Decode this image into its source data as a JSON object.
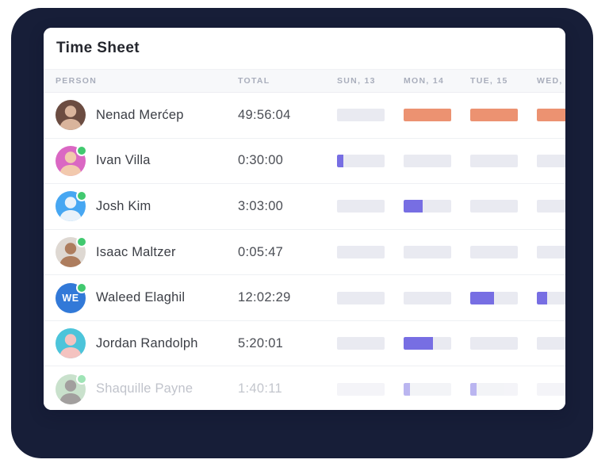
{
  "title": "Time Sheet",
  "header": {
    "person": "PERSON",
    "total": "TOTAL",
    "days": [
      "SUN, 13",
      "MON, 14",
      "TUE, 15",
      "WED,"
    ]
  },
  "colors": {
    "backdrop_navy": "#171e38",
    "orange": "#EC9271",
    "purple": "#776EE3",
    "bar_track": "#e9eaf1",
    "online_green": "#41c96f"
  },
  "rows": [
    {
      "name": "Nenad Merćep",
      "total": "49:56:04",
      "online": false,
      "faded": false,
      "avatar": {
        "bg": "#6b4c41",
        "fg": "#d9b49c",
        "initials": ""
      },
      "bars": [
        {
          "fill": 0
        },
        {
          "fill": 1,
          "color": "orange"
        },
        {
          "fill": 1,
          "color": "orange"
        },
        {
          "fill": 1,
          "color": "orange"
        }
      ]
    },
    {
      "name": "Ivan Villa",
      "total": "0:30:00",
      "online": true,
      "faded": false,
      "avatar": {
        "bg": "#da67c3",
        "fg": "#f2c9ad",
        "initials": ""
      },
      "bars": [
        {
          "fill": 0.13,
          "color": "purple"
        },
        {
          "fill": 0
        },
        {
          "fill": 0
        },
        {
          "fill": 0
        }
      ]
    },
    {
      "name": "Josh Kim",
      "total": "3:03:00",
      "online": true,
      "faded": false,
      "avatar": {
        "bg": "#47a7f2",
        "fg": "#e9f2fa",
        "initials": ""
      },
      "bars": [
        {
          "fill": 0
        },
        {
          "fill": 0.4,
          "color": "purple"
        },
        {
          "fill": 0
        },
        {
          "fill": 0
        }
      ]
    },
    {
      "name": "Isaac Maltzer",
      "total": "0:05:47",
      "online": true,
      "faded": false,
      "avatar": {
        "bg": "#ded8d2",
        "fg": "#ad7d5e",
        "initials": ""
      },
      "bars": [
        {
          "fill": 0
        },
        {
          "fill": 0
        },
        {
          "fill": 0
        },
        {
          "fill": 0
        }
      ]
    },
    {
      "name": "Waleed Elaghil",
      "total": "12:02:29",
      "online": true,
      "faded": false,
      "avatar": {
        "bg": "#3279d8",
        "fg": "#ffffff",
        "initials": "WE"
      },
      "bars": [
        {
          "fill": 0
        },
        {
          "fill": 0
        },
        {
          "fill": 0.5,
          "color": "purple"
        },
        {
          "fill": 0.22,
          "color": "purple"
        }
      ]
    },
    {
      "name": "Jordan Randolph",
      "total": "5:20:01",
      "online": false,
      "faded": false,
      "avatar": {
        "bg": "#4cc4da",
        "fg": "#f4c3c0",
        "initials": ""
      },
      "bars": [
        {
          "fill": 0
        },
        {
          "fill": 0.62,
          "color": "purple"
        },
        {
          "fill": 0
        },
        {
          "fill": 0
        }
      ]
    },
    {
      "name": "Shaquille Payne",
      "total": "1:40:11",
      "online": true,
      "faded": true,
      "avatar": {
        "bg": "#93c49a",
        "fg": "#47413e",
        "initials": ""
      },
      "bars": [
        {
          "fill": 0
        },
        {
          "fill": 0.13,
          "color": "purple"
        },
        {
          "fill": 0.13,
          "color": "purple"
        },
        {
          "fill": 0
        }
      ]
    }
  ]
}
